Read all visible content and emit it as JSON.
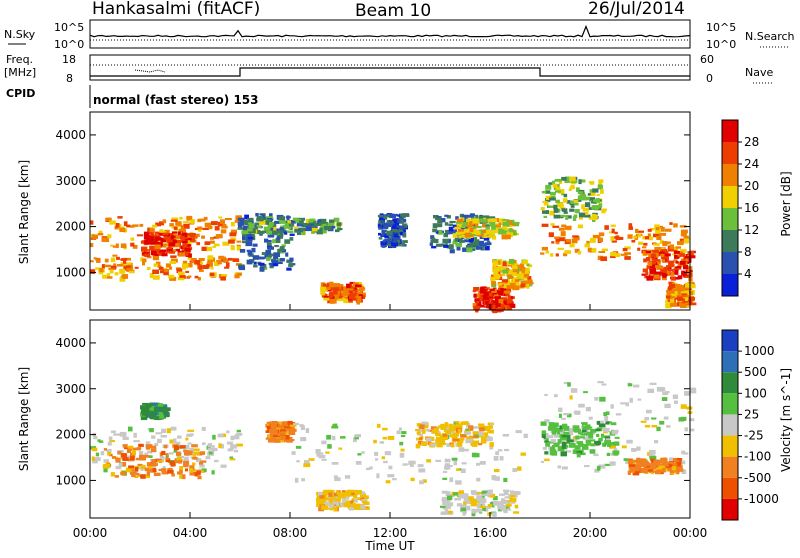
{
  "header": {
    "station": "Hankasalmi (fitACF)",
    "beam": "Beam 10",
    "date": "26/Jul/2014"
  },
  "control_panel": {
    "nsky_label": "N.Sky",
    "nsky_ticks": [
      "10^5",
      "10^0"
    ],
    "nsearch_label": "N.Search",
    "nsearch_ticks": [
      "10^5",
      "10^0"
    ],
    "freq_label_1": "Freq.",
    "freq_label_2": "[MHz]",
    "freq_ticks": [
      "18",
      "8"
    ],
    "nave_label": "Nave",
    "nave_ticks": [
      "60",
      "0"
    ],
    "cpid_label": "CPID",
    "cpid_value": "normal (fast stereo) 153"
  },
  "colors": {
    "power_scale": [
      "#0a1fd8",
      "#2a50b0",
      "#3c7a5a",
      "#6bbf3a",
      "#f0d000",
      "#f08000",
      "#ee3d00",
      "#e00000"
    ],
    "velocity_scale": [
      "#1a3fc0",
      "#2e6fb8",
      "#2f8a3a",
      "#55c040",
      "#c8c8c8",
      "#f0c000",
      "#f08020",
      "#ee5000",
      "#e00000"
    ],
    "ground_scatter": "#c8c8c8"
  },
  "chart_data": [
    {
      "type": "heatmap",
      "name": "power",
      "xlabel": "Time UT",
      "ylabel": "Slant Range [km]",
      "xlim": [
        0,
        24
      ],
      "ylim": [
        180,
        4500
      ],
      "x_ticks": [
        "00:00",
        "04:00",
        "08:00",
        "12:00",
        "16:00",
        "20:00",
        "00:00"
      ],
      "y_ticks": [
        1000,
        2000,
        3000,
        4000
      ],
      "colorbar": {
        "label": "Power [dB]",
        "range": [
          0,
          32
        ],
        "ticks": [
          4,
          8,
          12,
          16,
          20,
          24,
          28
        ]
      },
      "features": [
        {
          "t0": 0.0,
          "t1": 5.9,
          "r0": 1550,
          "r1": 2250,
          "level": 22
        },
        {
          "t0": 0.0,
          "t1": 5.9,
          "r0": 900,
          "r1": 1400,
          "level": 22
        },
        {
          "t0": 2.0,
          "t1": 4.0,
          "r0": 1400,
          "r1": 1900,
          "level": 27
        },
        {
          "t0": 5.9,
          "t1": 8.0,
          "r0": 1100,
          "r1": 2300,
          "level": 8
        },
        {
          "t0": 6.0,
          "t1": 10.0,
          "r0": 1900,
          "r1": 2200,
          "level": 12
        },
        {
          "t0": 9.2,
          "t1": 10.8,
          "r0": 400,
          "r1": 800,
          "level": 24
        },
        {
          "t0": 11.5,
          "t1": 12.5,
          "r0": 1600,
          "r1": 2300,
          "level": 6
        },
        {
          "t0": 13.5,
          "t1": 16.0,
          "r0": 1500,
          "r1": 2300,
          "level": 8
        },
        {
          "t0": 14.5,
          "t1": 17.0,
          "r0": 1800,
          "r1": 2200,
          "level": 18
        },
        {
          "t0": 15.3,
          "t1": 16.8,
          "r0": 200,
          "r1": 700,
          "level": 28
        },
        {
          "t0": 16.0,
          "t1": 17.5,
          "r0": 700,
          "r1": 1300,
          "level": 20
        },
        {
          "t0": 18.0,
          "t1": 23.8,
          "r0": 1350,
          "r1": 2100,
          "level": 22
        },
        {
          "t0": 18.0,
          "t1": 20.5,
          "r0": 2200,
          "r1": 3100,
          "level": 14
        },
        {
          "t0": 22.0,
          "t1": 24.0,
          "r0": 900,
          "r1": 1500,
          "level": 26
        },
        {
          "t0": 23.0,
          "t1": 24.0,
          "r0": 300,
          "r1": 800,
          "level": 22
        }
      ]
    },
    {
      "type": "heatmap",
      "name": "velocity",
      "xlabel": "Time UT",
      "ylabel": "Slant Range [km]",
      "xlim": [
        0,
        24
      ],
      "ylim": [
        180,
        4500
      ],
      "x_ticks": [
        "00:00",
        "04:00",
        "08:00",
        "12:00",
        "16:00",
        "20:00",
        "00:00"
      ],
      "y_ticks": [
        1000,
        2000,
        3000,
        4000
      ],
      "colorbar": {
        "label": "Velocity [m s^-1]",
        "ticks": [
          "1000",
          "500",
          "100",
          "25",
          "-25",
          "-100",
          "-500",
          "-1000"
        ]
      },
      "features": [
        {
          "t0": 0.0,
          "t1": 6.0,
          "r0": 1200,
          "r1": 2200,
          "level": 4
        },
        {
          "t0": 0.5,
          "t1": 4.5,
          "r0": 1100,
          "r1": 1800,
          "level": 6
        },
        {
          "t0": 7.0,
          "t1": 8.0,
          "r0": 1900,
          "r1": 2300,
          "level": 6
        },
        {
          "t0": 8.0,
          "t1": 17.5,
          "r0": 1000,
          "r1": 2300,
          "level": 4
        },
        {
          "t0": 9.0,
          "t1": 11.0,
          "r0": 400,
          "r1": 800,
          "level": 5
        },
        {
          "t0": 13.0,
          "t1": 16.0,
          "r0": 1800,
          "r1": 2300,
          "level": 5
        },
        {
          "t0": 14.0,
          "t1": 17.0,
          "r0": 300,
          "r1": 800,
          "level": 4
        },
        {
          "t0": 18.0,
          "t1": 24.0,
          "r0": 1200,
          "r1": 3200,
          "level": 4
        },
        {
          "t0": 18.0,
          "t1": 21.0,
          "r0": 1600,
          "r1": 2300,
          "level": 3
        },
        {
          "t0": 21.5,
          "t1": 23.5,
          "r0": 1200,
          "r1": 1500,
          "level": 6
        },
        {
          "t0": 2.0,
          "t1": 3.0,
          "r0": 2400,
          "r1": 2700,
          "level": 2
        }
      ]
    }
  ]
}
